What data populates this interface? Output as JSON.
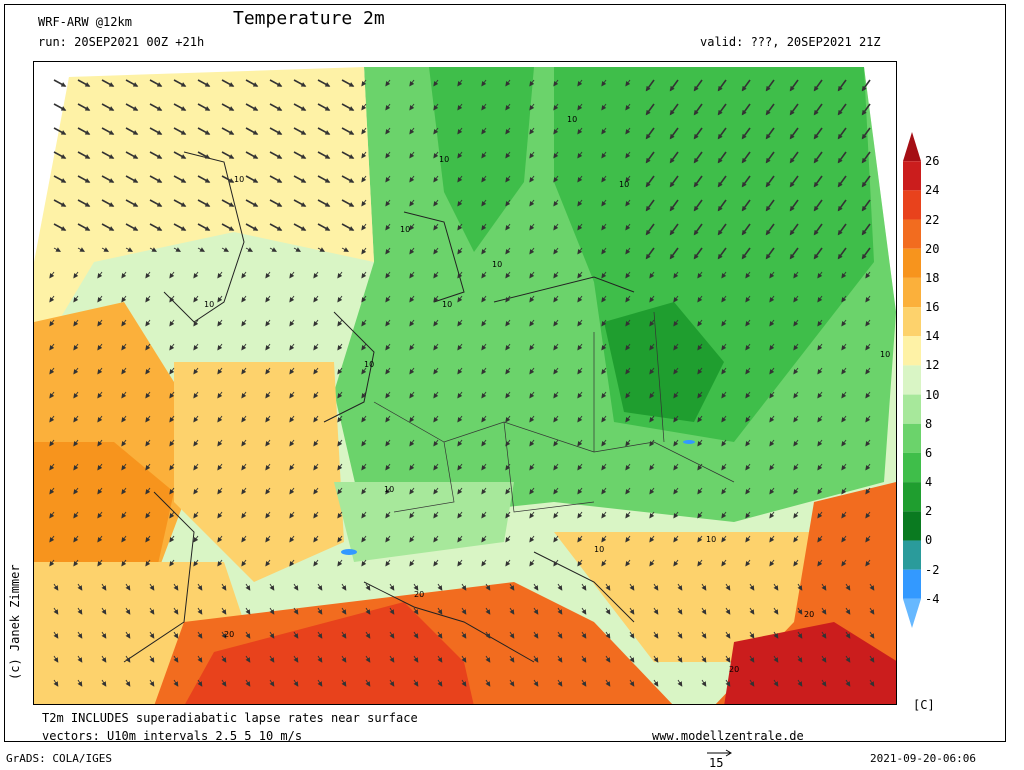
{
  "header": {
    "model": "WRF-ARW @12km",
    "title": "Temperature 2m",
    "run": "run: 20SEP2021 00Z +21h",
    "valid": "valid: ???, 20SEP2021 21Z"
  },
  "credit": "(c) Janek Zimmer",
  "footer": {
    "note1": "T2m INCLUDES superadiabatic lapse rates near surface",
    "note2": "vectors: U10m intervals 2.5 5 10 m/s",
    "website": "www.modellzentrale.de",
    "grads": "GrADS: COLA/IGES",
    "timestamp": "2021-09-20-06:06",
    "ref_vector": "15"
  },
  "colorbar": {
    "unit": "[C]",
    "levels": [
      "26",
      "24",
      "22",
      "20",
      "18",
      "16",
      "14",
      "12",
      "10",
      "8",
      "6",
      "4",
      "2",
      "0",
      "-2",
      "-4"
    ],
    "colors": [
      "#a50f15",
      "#cb1d1d",
      "#e8421c",
      "#f26c1f",
      "#f7941d",
      "#fbb03b",
      "#fdd26c",
      "#fef2a6",
      "#d9f5c5",
      "#a7e89b",
      "#6bd36b",
      "#3fbe4a",
      "#1f9e2f",
      "#0a7a20",
      "#2a9b9b",
      "#3399ff",
      "#66b8ff"
    ]
  },
  "map_labels": [
    "10",
    "10",
    "10",
    "10",
    "10",
    "10",
    "10",
    "10",
    "10",
    "10",
    "10",
    "10",
    "10",
    "20",
    "20",
    "20",
    "20"
  ]
}
